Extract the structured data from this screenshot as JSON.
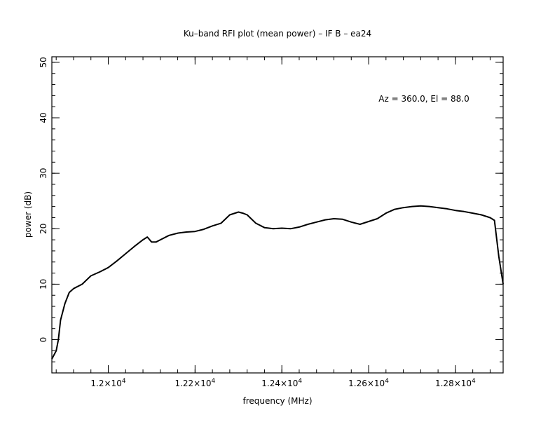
{
  "chart_data": {
    "type": "line",
    "title": "Ku–band RFI plot (mean power) – IF B – ea24",
    "annotation": "Az = 360.0, El = 88.0",
    "xlabel": "frequency (MHz)",
    "ylabel": "power (dB)",
    "xlim": [
      11870,
      12910
    ],
    "ylim": [
      -6,
      51
    ],
    "x_ticks": [
      {
        "value": 12000,
        "mantissa": "1.2",
        "exponent": "4"
      },
      {
        "value": 12200,
        "mantissa": "1.22",
        "exponent": "4"
      },
      {
        "value": 12400,
        "mantissa": "1.24",
        "exponent": "4"
      },
      {
        "value": 12600,
        "mantissa": "1.26",
        "exponent": "4"
      },
      {
        "value": 12800,
        "mantissa": "1.28",
        "exponent": "4"
      }
    ],
    "x_minor_step": 40,
    "y_ticks": [
      0,
      10,
      20,
      30,
      40,
      50
    ],
    "y_minor_step": 2,
    "grid": false,
    "line_color": "#000000",
    "series": [
      {
        "x": [
          11870,
          11880,
          11885,
          11890,
          11900,
          11910,
          11920,
          11940,
          11960,
          11980,
          12000,
          12020,
          12040,
          12060,
          12080,
          12090,
          12100,
          12110,
          12120,
          12140,
          12160,
          12180,
          12200,
          12220,
          12240,
          12260,
          12280,
          12300,
          12310,
          12320,
          12340,
          12360,
          12380,
          12400,
          12420,
          12440,
          12460,
          12480,
          12500,
          12520,
          12540,
          12560,
          12580,
          12600,
          12620,
          12640,
          12660,
          12680,
          12700,
          12720,
          12740,
          12760,
          12780,
          12800,
          12820,
          12840,
          12860,
          12880,
          12890,
          12900,
          12910
        ],
        "y": [
          -3.5,
          -2.0,
          0.0,
          3.5,
          6.5,
          8.5,
          9.2,
          10.0,
          11.5,
          12.2,
          13.0,
          14.2,
          15.5,
          16.8,
          18.0,
          18.5,
          17.6,
          17.6,
          18.0,
          18.8,
          19.2,
          19.4,
          19.5,
          19.9,
          20.5,
          21.0,
          22.5,
          23.0,
          22.8,
          22.5,
          21.0,
          20.2,
          20.0,
          20.1,
          20.0,
          20.3,
          20.8,
          21.2,
          21.6,
          21.8,
          21.7,
          21.2,
          20.8,
          21.3,
          21.8,
          22.8,
          23.5,
          23.8,
          24.0,
          24.1,
          24.0,
          23.8,
          23.6,
          23.3,
          23.1,
          22.8,
          22.5,
          22.0,
          21.5,
          15.0,
          10.0
        ]
      }
    ]
  }
}
